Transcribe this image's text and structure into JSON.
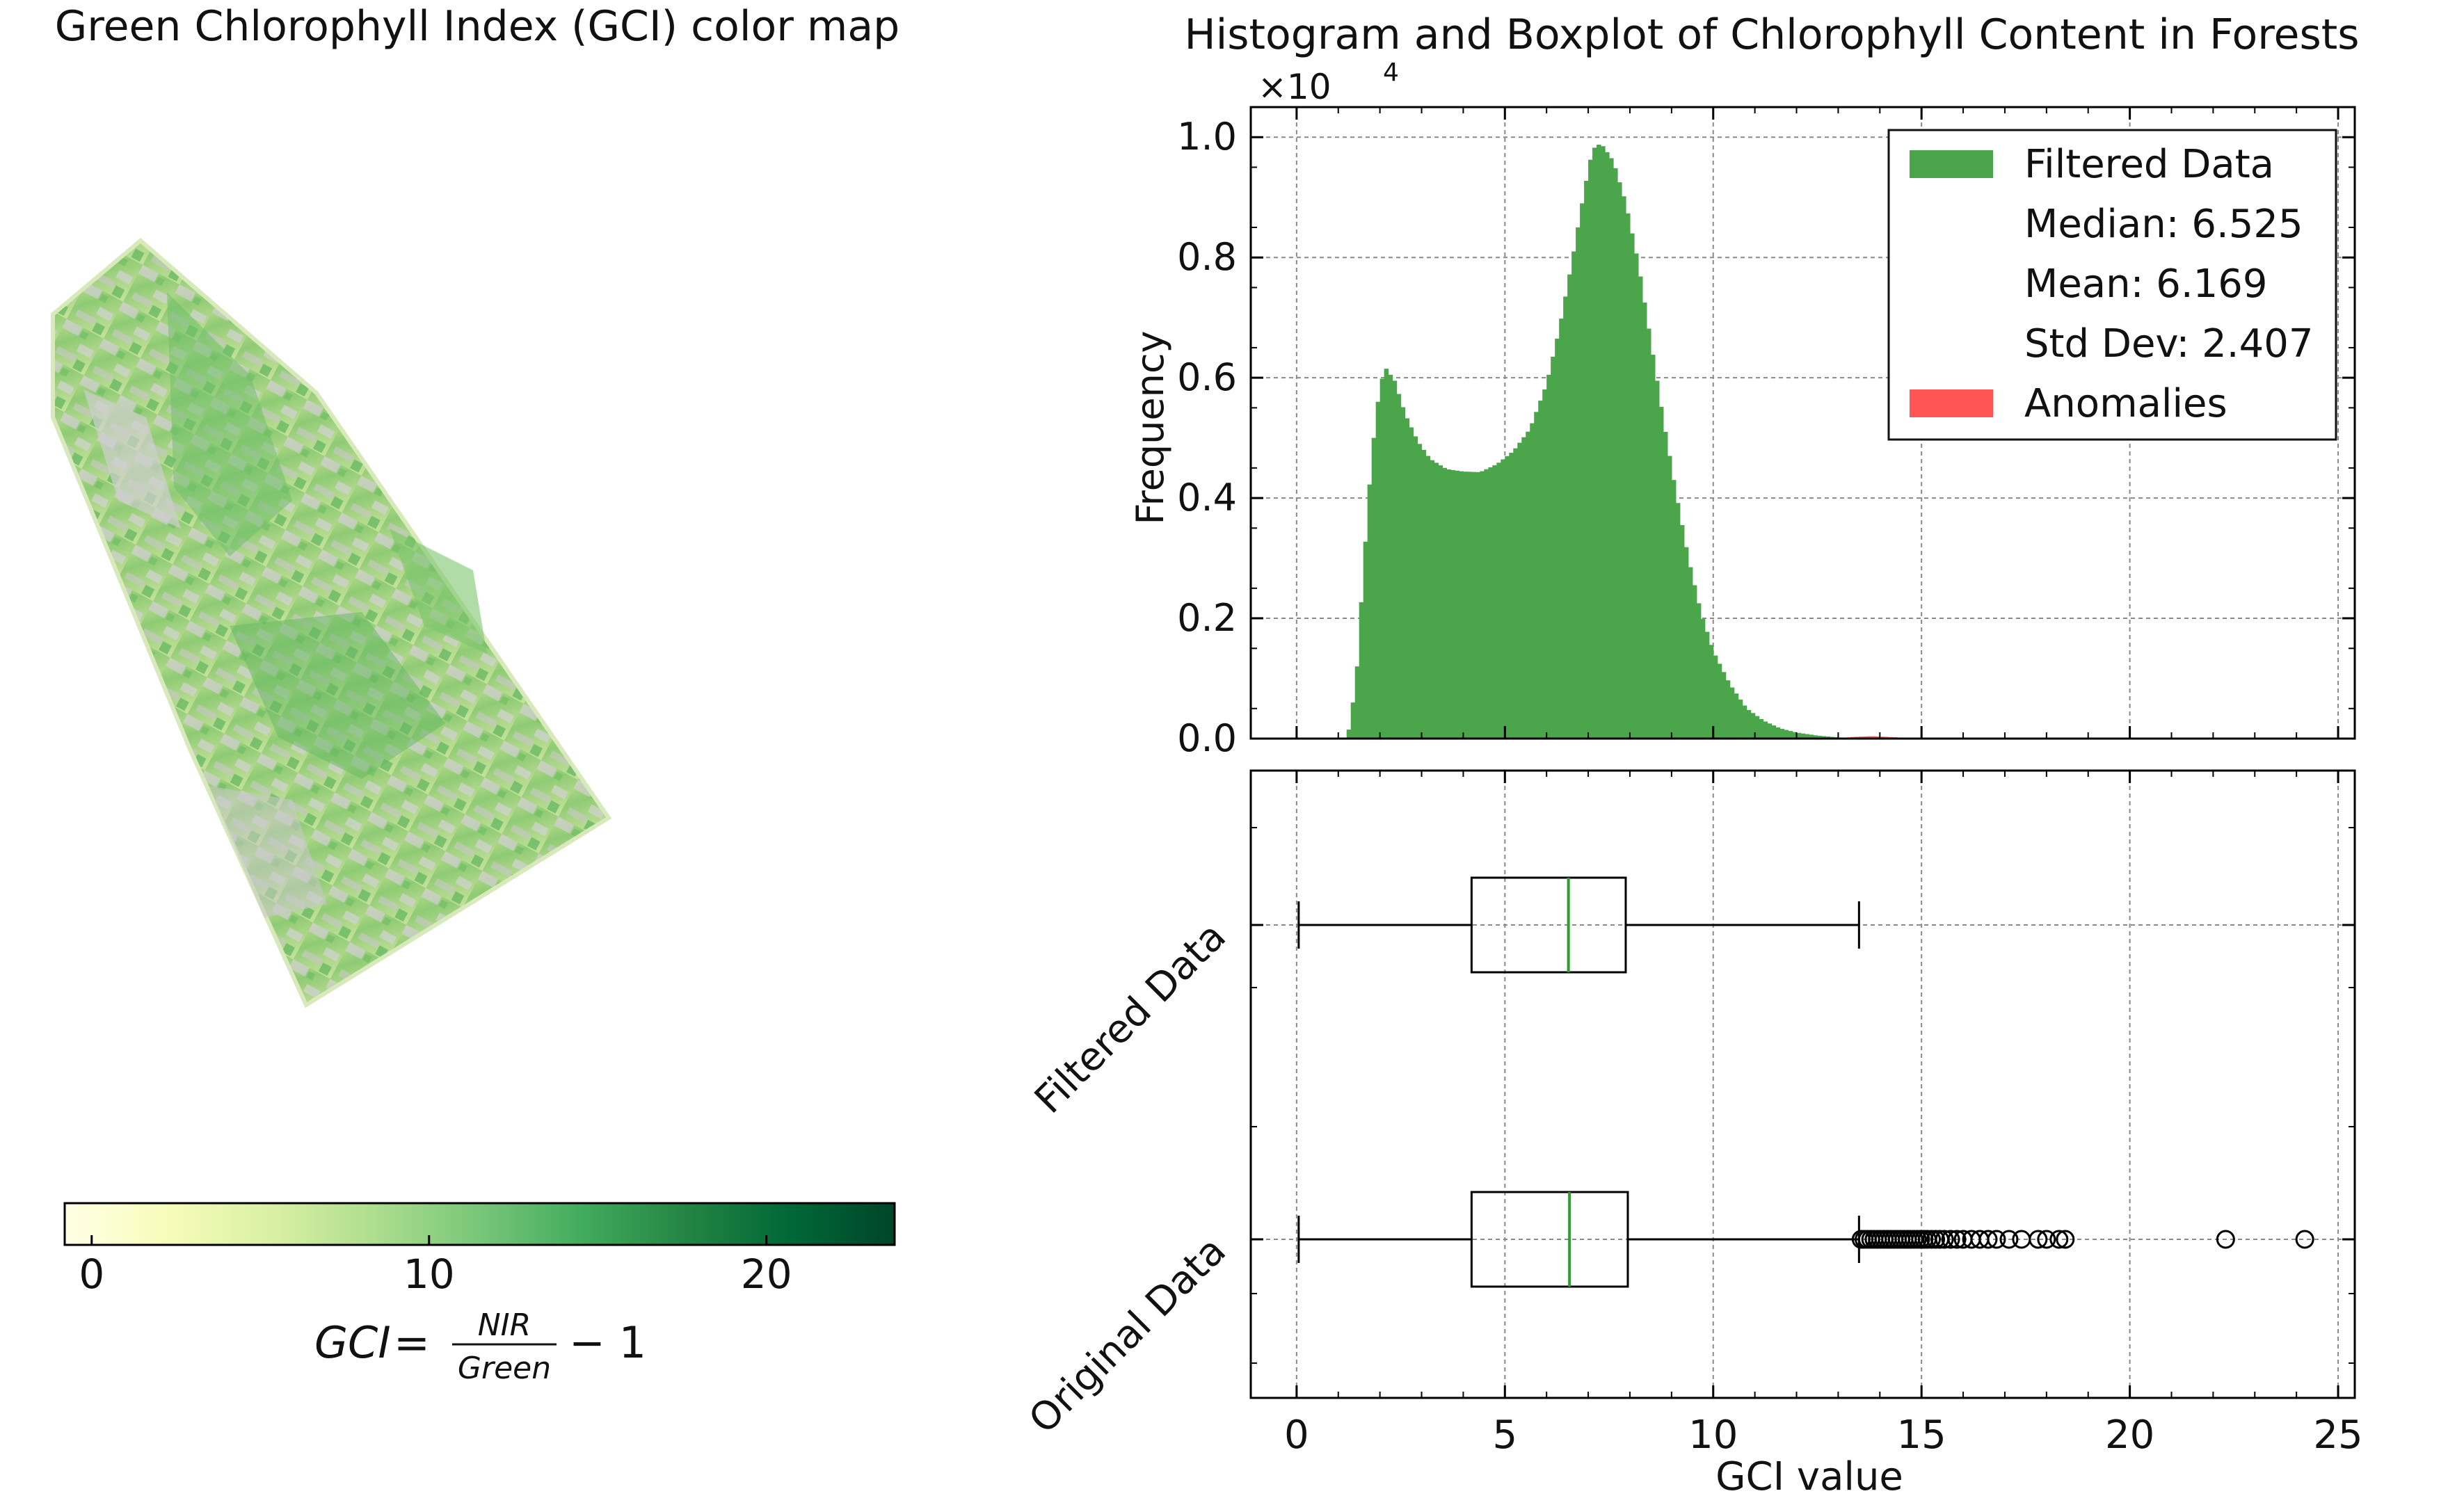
{
  "map": {
    "title": "Green Chlorophyll Index (GCI) color map",
    "colorbar": {
      "ticks": [
        0,
        10,
        20
      ],
      "range": [
        -0.8,
        23.8
      ],
      "colormap": "YlGn",
      "stops": [
        "#ffffe5",
        "#f7fcb9",
        "#d9f0a3",
        "#addd8e",
        "#78c679",
        "#41ab5d",
        "#238443",
        "#006837",
        "#004529"
      ]
    },
    "formula": {
      "lhs": "GCI",
      "eq": "=",
      "numerator": "NIR",
      "denominator": "Green",
      "rhs": "− 1"
    }
  },
  "chart_data": [
    {
      "type": "bar",
      "title": "Histogram and Boxplot of Chlorophyll Content in Forests",
      "xlabel": "",
      "ylabel": "Frequency",
      "y_scale_label": "×10",
      "y_scale_exponent": "4",
      "xlim": [
        -1.1,
        25.4
      ],
      "ylim": [
        0,
        10500
      ],
      "grid": true,
      "legend_position": "top-right",
      "legend": [
        {
          "label": "Filtered Data",
          "color": "#4ba54b",
          "swatch": true
        },
        {
          "label": "Median: 6.525",
          "swatch": false
        },
        {
          "label": "Mean: 6.169",
          "swatch": false
        },
        {
          "label": "Std Dev: 2.407",
          "swatch": false
        },
        {
          "label": "Anomalies",
          "color": "#ff5555",
          "swatch": true
        }
      ],
      "x_ticks": [
        0,
        5,
        10,
        15,
        20,
        25
      ],
      "y_ticks": [
        0,
        2000,
        4000,
        6000,
        8000,
        10000
      ],
      "y_tick_labels": [
        "0.0",
        "0.2",
        "0.4",
        "0.6",
        "0.8",
        "1.0"
      ],
      "bin_width": 0.1,
      "series": [
        {
          "name": "Filtered Data",
          "color": "#4ba54b",
          "points": [
            [
              1.2,
              0
            ],
            [
              1.3,
              300
            ],
            [
              1.45,
              1200
            ],
            [
              1.6,
              2800
            ],
            [
              1.8,
              4700
            ],
            [
              2.0,
              5900
            ],
            [
              2.15,
              6150
            ],
            [
              2.35,
              5950
            ],
            [
              2.6,
              5400
            ],
            [
              2.9,
              4950
            ],
            [
              3.2,
              4650
            ],
            [
              3.6,
              4480
            ],
            [
              4.0,
              4440
            ],
            [
              4.4,
              4430
            ],
            [
              4.8,
              4560
            ],
            [
              5.2,
              4780
            ],
            [
              5.6,
              5150
            ],
            [
              6.0,
              5900
            ],
            [
              6.3,
              6800
            ],
            [
              6.6,
              7900
            ],
            [
              6.9,
              9100
            ],
            [
              7.1,
              9800
            ],
            [
              7.3,
              9900
            ],
            [
              7.6,
              9600
            ],
            [
              7.9,
              8900
            ],
            [
              8.2,
              7900
            ],
            [
              8.5,
              6600
            ],
            [
              8.8,
              5300
            ],
            [
              9.1,
              4100
            ],
            [
              9.4,
              3000
            ],
            [
              9.7,
              2100
            ],
            [
              10.0,
              1450
            ],
            [
              10.4,
              900
            ],
            [
              10.8,
              500
            ],
            [
              11.2,
              300
            ],
            [
              11.6,
              170
            ],
            [
              12.0,
              100
            ],
            [
              12.5,
              50
            ],
            [
              13.0,
              20
            ],
            [
              13.5,
              0
            ]
          ]
        },
        {
          "name": "Anomalies",
          "color": "#ff5555",
          "points": [
            [
              13.0,
              0
            ],
            [
              13.3,
              25
            ],
            [
              13.8,
              40
            ],
            [
              14.4,
              20
            ],
            [
              15.0,
              0
            ]
          ]
        }
      ]
    },
    {
      "type": "boxplot",
      "xlabel": "GCI value",
      "xlim": [
        -1.1,
        25.4
      ],
      "x_ticks": [
        0,
        5,
        10,
        15,
        20,
        25
      ],
      "grid": true,
      "boxes": [
        {
          "name": "Filtered Data",
          "whisker_low": 0.05,
          "q1": 4.2,
          "median": 6.525,
          "q3": 7.9,
          "whisker_high": 13.5,
          "outliers": []
        },
        {
          "name": "Original Data",
          "whisker_low": 0.05,
          "q1": 4.2,
          "median": 6.55,
          "q3": 7.95,
          "whisker_high": 13.5,
          "outliers": [
            13.55,
            13.62,
            13.7,
            13.78,
            13.86,
            13.94,
            14.02,
            14.1,
            14.18,
            14.26,
            14.34,
            14.42,
            14.5,
            14.58,
            14.66,
            14.74,
            14.82,
            14.9,
            14.98,
            15.06,
            15.14,
            15.24,
            15.34,
            15.44,
            15.55,
            15.7,
            15.85,
            16.0,
            16.2,
            16.4,
            16.6,
            16.8,
            17.1,
            17.4,
            17.8,
            18.0,
            18.3,
            18.45,
            22.3,
            24.2
          ]
        }
      ]
    }
  ]
}
